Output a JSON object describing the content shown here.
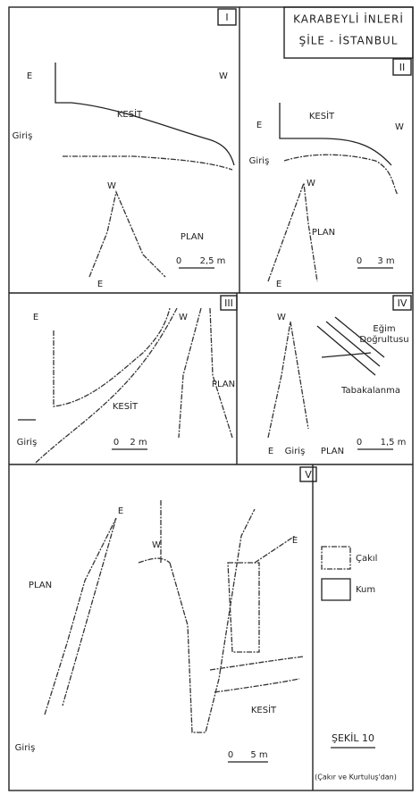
{
  "header": {
    "title": "KARABEYLİ İNLERİ",
    "subtitle": "ŞİLE - İSTANBUL"
  },
  "panels": [
    {
      "label": "I",
      "texts": [
        "E",
        "W",
        "KESİT",
        "Giriş",
        "W",
        "PLAN",
        "0",
        "2,5 m",
        "E"
      ]
    },
    {
      "label": "II",
      "texts": [
        "E",
        "KESİT",
        "W",
        "Giriş",
        "W",
        "PLAN",
        "0",
        "3 m",
        "E"
      ]
    },
    {
      "label": "III",
      "texts": [
        "E",
        "W",
        "KESİT",
        "Giriş",
        "0",
        "2 m",
        "PLAN"
      ]
    },
    {
      "label": "IV",
      "texts": [
        "W",
        "Eğim",
        "Doğrultusu",
        "Tabakalanma",
        "E",
        "Giriş",
        "PLAN",
        "0",
        "1,5 m"
      ]
    },
    {
      "label": "V",
      "texts": [
        "PLAN",
        "E",
        "W",
        "E",
        "KESİT",
        "Giriş",
        "0",
        "5 m"
      ]
    }
  ],
  "legend": {
    "items": [
      "Çakıl",
      "Kum"
    ],
    "figure": "ŞEKİL 10",
    "credit": "(Çakır ve Kurtuluş'dan)"
  }
}
